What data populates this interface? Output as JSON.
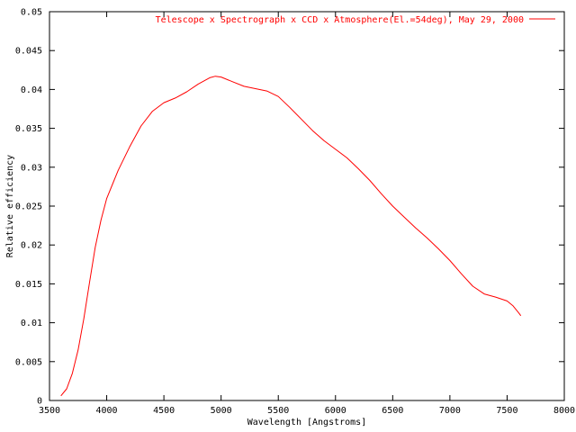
{
  "chart_data": {
    "type": "line",
    "xlabel": "Wavelength [Angstroms]",
    "ylabel": "Relative efficiency",
    "xlim": [
      3500,
      8000
    ],
    "ylim": [
      0,
      0.05
    ],
    "x_ticks": [
      3500,
      4000,
      4500,
      5000,
      5500,
      6000,
      6500,
      7000,
      7500,
      8000
    ],
    "x_tick_labels": [
      "3500",
      "4000",
      "4500",
      "5000",
      "5500",
      "6000",
      "6500",
      "7000",
      "7500",
      "8000"
    ],
    "y_ticks": [
      0,
      0.005,
      0.01,
      0.015,
      0.02,
      0.025,
      0.03,
      0.035,
      0.04,
      0.045,
      0.05
    ],
    "y_tick_labels": [
      "0",
      "0.005",
      "0.01",
      "0.015",
      "0.02",
      "0.025",
      "0.03",
      "0.035",
      "0.04",
      "0.045",
      "0.05"
    ],
    "grid": false,
    "legend_position": "top-right",
    "series": [
      {
        "name": "Telescope x Spectrograph x CCD x Atmosphere(El.=54deg), May 29, 2000",
        "color": "#ff0000",
        "x": [
          3600,
          3650,
          3700,
          3750,
          3800,
          3850,
          3900,
          3950,
          4000,
          4100,
          4200,
          4300,
          4400,
          4500,
          4600,
          4700,
          4800,
          4900,
          4950,
          5000,
          5100,
          5200,
          5300,
          5400,
          5500,
          5600,
          5700,
          5800,
          5900,
          6000,
          6100,
          6200,
          6300,
          6400,
          6500,
          6600,
          6700,
          6800,
          6900,
          7000,
          7100,
          7200,
          7300,
          7400,
          7500,
          7550,
          7600,
          7620
        ],
        "y": [
          0.0006,
          0.0015,
          0.0035,
          0.0065,
          0.0105,
          0.0152,
          0.0197,
          0.0232,
          0.026,
          0.0296,
          0.0326,
          0.0353,
          0.0372,
          0.0383,
          0.0389,
          0.0397,
          0.0407,
          0.0415,
          0.0417,
          0.0416,
          0.041,
          0.0404,
          0.0401,
          0.0398,
          0.0391,
          0.0377,
          0.0362,
          0.0347,
          0.0334,
          0.0323,
          0.0312,
          0.0298,
          0.0283,
          0.0266,
          0.025,
          0.0236,
          0.0222,
          0.0209,
          0.0195,
          0.018,
          0.0163,
          0.0147,
          0.0137,
          0.0133,
          0.0128,
          0.0122,
          0.0113,
          0.0109
        ]
      }
    ]
  }
}
